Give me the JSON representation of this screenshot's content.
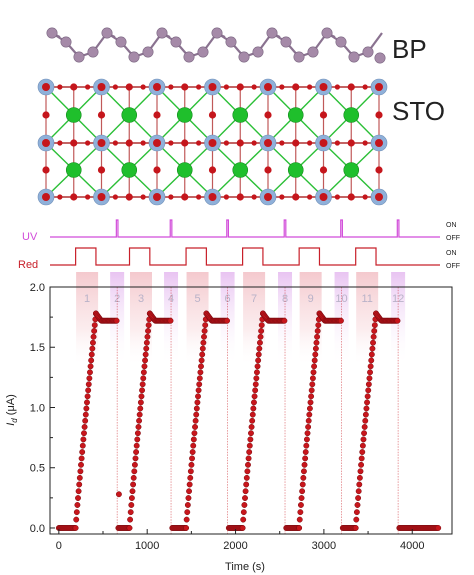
{
  "structure": {
    "labels": {
      "bp": "BP",
      "sto": "STO"
    },
    "colors": {
      "phosphorus": "#a58aa8",
      "phosphorus_bond": "#8a7290",
      "strontium": "#1fbf2c",
      "titanium": "#8fb0d9",
      "oxygen": "#c5161c",
      "bond": "#b03030",
      "sr_bond": "#2bbf37"
    }
  },
  "pulses": {
    "uv": {
      "label": "UV",
      "on": "ON",
      "off": "OFF",
      "color": "#d14cd9"
    },
    "red": {
      "label": "Red",
      "on": "ON",
      "off": "OFF",
      "color": "#c8202a"
    },
    "uv_pulse_times": [
      660,
      1270,
      1910,
      2560,
      3200,
      3840
    ],
    "red_on_intervals": [
      [
        190,
        420
      ],
      [
        800,
        1030
      ],
      [
        1440,
        1670
      ],
      [
        2080,
        2310
      ],
      [
        2720,
        2950
      ],
      [
        3360,
        3590
      ]
    ]
  },
  "chart_data": {
    "type": "scatter",
    "title": "",
    "xlabel": "Time (s)",
    "ylabel_main": "I",
    "ylabel_sub": "d",
    "ylabel_unit": " (μA)",
    "xlim": [
      -100,
      4450
    ],
    "ylim": [
      -0.05,
      2.0
    ],
    "xticks": [
      0,
      1000,
      2000,
      3000,
      4000
    ],
    "yticks": [
      0.0,
      0.5,
      1.0,
      1.5,
      2.0
    ],
    "xtick_labels": [
      "0",
      "1000",
      "2000",
      "3000",
      "4000"
    ],
    "ytick_labels": [
      "0.0",
      "0.5",
      "1.0",
      "1.5",
      "2.0"
    ],
    "marker_color": "#c8161c",
    "events": [
      {
        "label": "1",
        "t": 320
      },
      {
        "label": "2",
        "t": 660
      },
      {
        "label": "3",
        "t": 930
      },
      {
        "label": "4",
        "t": 1270
      },
      {
        "label": "5",
        "t": 1570
      },
      {
        "label": "6",
        "t": 1910
      },
      {
        "label": "7",
        "t": 2210
      },
      {
        "label": "8",
        "t": 2560
      },
      {
        "label": "9",
        "t": 2850
      },
      {
        "label": "10",
        "t": 3200
      },
      {
        "label": "11",
        "t": 3490
      },
      {
        "label": "12",
        "t": 3840
      }
    ],
    "cycles": [
      {
        "rise_start": 190,
        "rise_end": 420,
        "hold_end": 660
      },
      {
        "rise_start": 800,
        "rise_end": 1030,
        "hold_end": 1270
      },
      {
        "rise_start": 1440,
        "rise_end": 1670,
        "hold_end": 1910
      },
      {
        "rise_start": 2080,
        "rise_end": 2310,
        "hold_end": 2560
      },
      {
        "rise_start": 2720,
        "rise_end": 2950,
        "hold_end": 3200
      },
      {
        "rise_start": 3360,
        "rise_end": 3590,
        "hold_end": 3840
      }
    ],
    "peak": 1.78,
    "plateau": 1.72,
    "baseline": 0.0,
    "data_end": 4300,
    "outlier": {
      "x": 680,
      "y": 0.28
    }
  }
}
